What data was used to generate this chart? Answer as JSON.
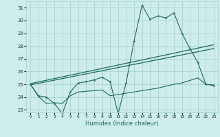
{
  "xlabel": "Humidex (Indice chaleur)",
  "bg_color": "#ceecea",
  "grid_color": "#a8d5d1",
  "line_color": "#1a6b5a",
  "xlim": [
    -0.5,
    23.5
  ],
  "ylim": [
    22.8,
    31.5
  ],
  "yticks": [
    23,
    24,
    25,
    26,
    27,
    28,
    29,
    30,
    31
  ],
  "xticks": [
    0,
    1,
    2,
    3,
    4,
    5,
    6,
    7,
    8,
    9,
    10,
    11,
    12,
    13,
    14,
    15,
    16,
    17,
    18,
    19,
    20,
    21,
    22,
    23
  ],
  "curve1_x": [
    0,
    1,
    2,
    3,
    4,
    5,
    6,
    7,
    8,
    9,
    10,
    11,
    12,
    13,
    14,
    15,
    16,
    17,
    18,
    19,
    20,
    21,
    22,
    23
  ],
  "curve1_y": [
    25.0,
    24.1,
    24.0,
    23.5,
    22.7,
    24.4,
    25.1,
    25.2,
    25.35,
    25.55,
    25.2,
    22.7,
    25.1,
    28.4,
    31.2,
    30.1,
    30.35,
    30.2,
    30.6,
    29.0,
    27.8,
    26.7,
    25.0,
    24.9
  ],
  "curve2_x": [
    0,
    1,
    2,
    3,
    4,
    5,
    6,
    7,
    8,
    9,
    10,
    11,
    12,
    13,
    14,
    15,
    16,
    17,
    18,
    19,
    20,
    21,
    22,
    23
  ],
  "curve2_y": [
    25.0,
    24.05,
    23.5,
    23.55,
    23.5,
    24.1,
    24.4,
    24.45,
    24.5,
    24.55,
    24.1,
    24.2,
    24.3,
    24.4,
    24.5,
    24.6,
    24.7,
    24.85,
    25.0,
    25.1,
    25.3,
    25.5,
    25.0,
    24.95
  ],
  "line1_x": [
    0,
    23
  ],
  "line1_y": [
    24.95,
    27.8
  ],
  "line2_x": [
    0,
    23
  ],
  "line2_y": [
    25.05,
    28.1
  ]
}
